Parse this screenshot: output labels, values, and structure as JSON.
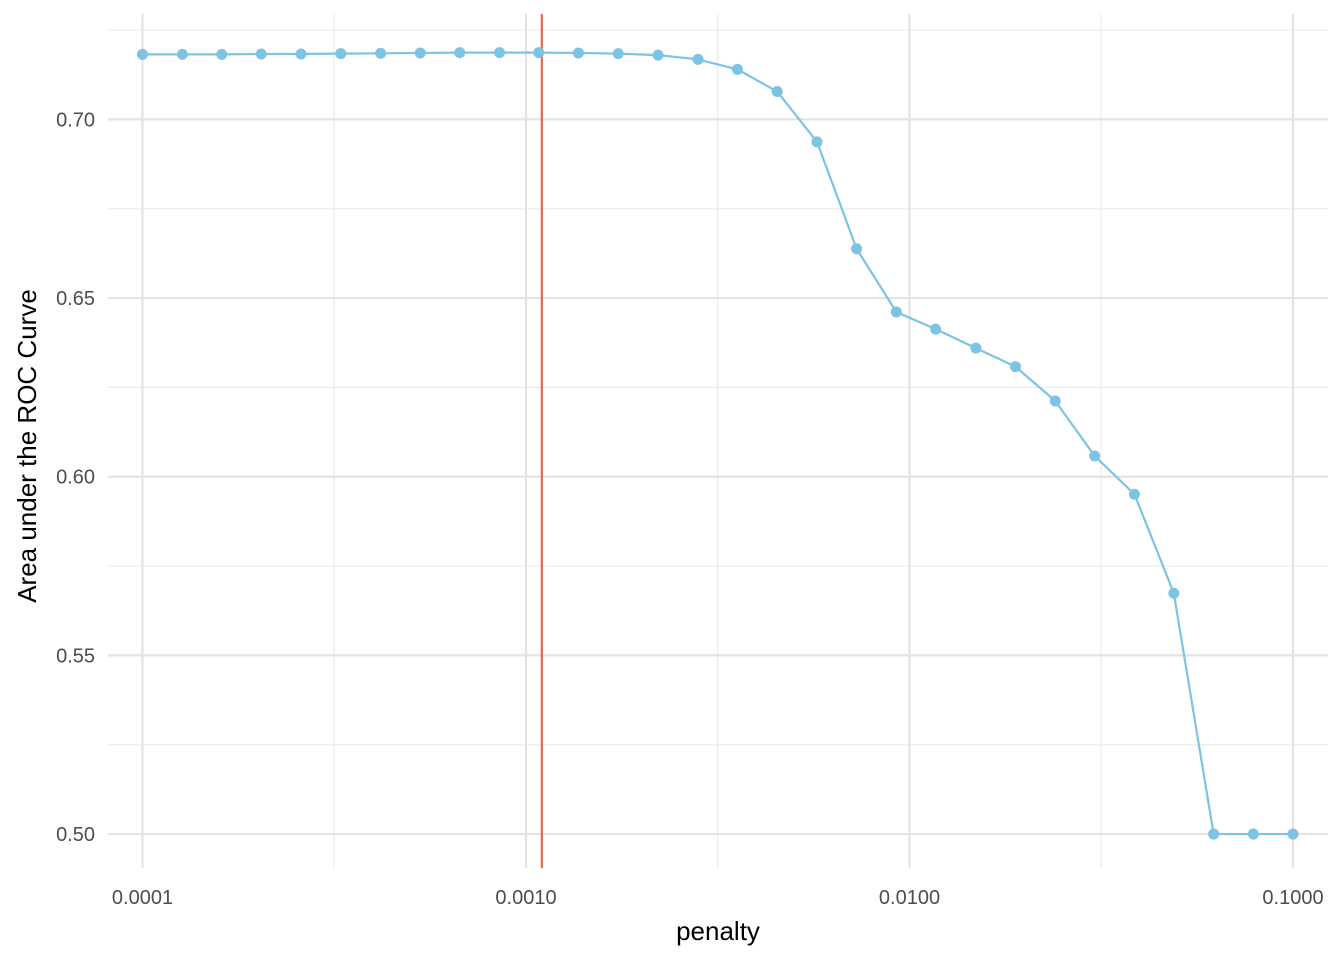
{
  "chart_data": {
    "type": "line",
    "xlabel": "penalty",
    "ylabel": "Area under the ROC Curve",
    "x_scale": "log10",
    "xlim": [
      8.13e-05,
      0.1234
    ],
    "ylim": [
      0.4905,
      0.7295
    ],
    "x_ticks": [
      0.0001,
      0.001,
      0.01,
      0.1
    ],
    "x_tick_labels": [
      "0.0001",
      "0.0010",
      "0.0100",
      "0.1000"
    ],
    "x_minor_ticks": [
      0.000316,
      0.00316,
      0.0316
    ],
    "y_ticks": [
      0.5,
      0.55,
      0.6,
      0.65,
      0.7
    ],
    "y_tick_labels": [
      "0.50",
      "0.55",
      "0.60",
      "0.65",
      "0.70"
    ],
    "y_minor_ticks": [
      0.525,
      0.575,
      0.625,
      0.675,
      0.725
    ],
    "grid": true,
    "legend": "none",
    "series": [
      {
        "color": "#7dc3e3",
        "x": [
          0.0001,
          0.000127,
          0.000161,
          0.000204,
          0.000259,
          0.000329,
          0.000418,
          0.00053,
          0.000672,
          0.000853,
          0.00108,
          0.00137,
          0.00174,
          0.00221,
          0.00281,
          0.00356,
          0.00452,
          0.00574,
          0.00728,
          0.00924,
          0.0117,
          0.0149,
          0.0189,
          0.024,
          0.0304,
          0.0386,
          0.0489,
          0.0621,
          0.0788,
          0.1
        ],
        "y": [
          0.7182,
          0.7182,
          0.7182,
          0.7183,
          0.7183,
          0.7184,
          0.7185,
          0.7186,
          0.7187,
          0.7187,
          0.7187,
          0.7186,
          0.7184,
          0.718,
          0.7168,
          0.714,
          0.7078,
          0.6937,
          0.6638,
          0.6461,
          0.6413,
          0.636,
          0.6308,
          0.6212,
          0.6058,
          0.5951,
          0.5674,
          0.5,
          0.5,
          0.5
        ]
      }
    ],
    "reference_lines": [
      {
        "orientation": "vertical",
        "x": 0.0011,
        "color": "#e8674a"
      }
    ]
  }
}
